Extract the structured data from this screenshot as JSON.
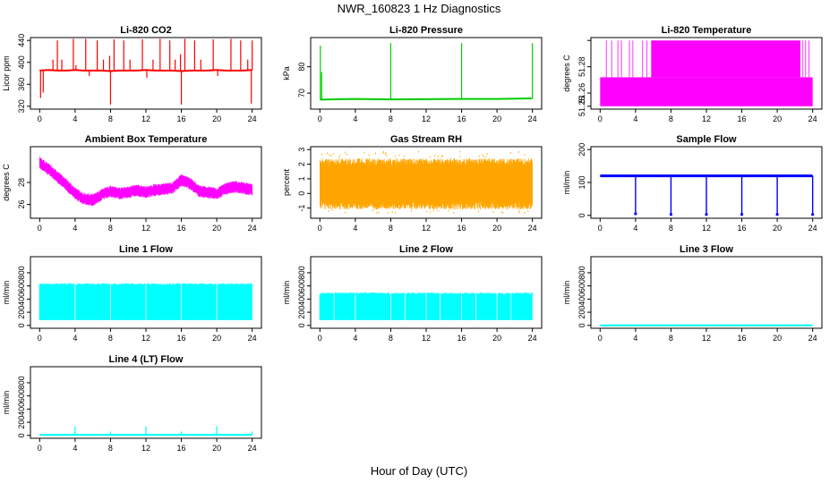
{
  "figure": {
    "title": "NWR_160823  1 Hz Diagnostics",
    "xlabel": "Hour of Day (UTC)"
  },
  "colors": {
    "red": "#ff0000",
    "green": "#00cd00",
    "magenta": "#ff00ff",
    "orange": "#ffa500",
    "blue": "#0000ff",
    "cyan": "#00ffff"
  },
  "chart_data": [
    {
      "type": "line",
      "title": "Li-820 CO2",
      "ylabel": "Licor ppm",
      "xlim": [
        0,
        24
      ],
      "ylim": [
        320,
        440
      ],
      "xticks": [
        0,
        4,
        8,
        12,
        16,
        20,
        24
      ],
      "yticks": [
        320,
        360,
        400,
        440
      ],
      "series": [
        {
          "color": "#ff0000",
          "x": [
            0,
            1,
            2,
            3,
            4,
            5,
            6,
            7,
            8,
            9,
            10,
            11,
            12,
            13,
            14,
            15,
            16,
            17,
            18,
            19,
            20,
            21,
            22,
            23,
            24
          ],
          "y": [
            385,
            386,
            385,
            385,
            386,
            385,
            385,
            385,
            384,
            385,
            385,
            385,
            386,
            385,
            385,
            385,
            384,
            385,
            385,
            385,
            386,
            385,
            385,
            385,
            386
          ],
          "spikes": [
            [
              0.1,
              335
            ],
            [
              0.4,
              345
            ],
            [
              1.5,
              405
            ],
            [
              2.0,
              440
            ],
            [
              2.5,
              405
            ],
            [
              3.8,
              443
            ],
            [
              4.1,
              395
            ],
            [
              5.2,
              443
            ],
            [
              5.6,
              375
            ],
            [
              6.5,
              440
            ],
            [
              7.2,
              405
            ],
            [
              7.9,
              412
            ],
            [
              8.0,
              323
            ],
            [
              8.4,
              442
            ],
            [
              9.5,
              440
            ],
            [
              10.2,
              405
            ],
            [
              11.6,
              442
            ],
            [
              12.1,
              372
            ],
            [
              12.8,
              405
            ],
            [
              13.6,
              443
            ],
            [
              14.7,
              440
            ],
            [
              15.3,
              405
            ],
            [
              15.9,
              415
            ],
            [
              16.0,
              323
            ],
            [
              16.4,
              443
            ],
            [
              17.5,
              440
            ],
            [
              18.2,
              405
            ],
            [
              19.6,
              442
            ],
            [
              20.1,
              375
            ],
            [
              21.6,
              443
            ],
            [
              22.7,
              440
            ],
            [
              23.5,
              405
            ],
            [
              23.9,
              325
            ],
            [
              24.0,
              440
            ]
          ]
        }
      ]
    },
    {
      "type": "line",
      "title": "Li-820 Pressure",
      "ylabel": "kPa",
      "xlim": [
        0,
        24
      ],
      "ylim": [
        65,
        90
      ],
      "xticks": [
        0,
        4,
        8,
        12,
        16,
        20,
        24
      ],
      "yticks": [
        70,
        80
      ],
      "series": [
        {
          "color": "#00cd00",
          "x": [
            0,
            4,
            8,
            12,
            16,
            20,
            24
          ],
          "y": [
            67.5,
            67.8,
            67.6,
            67.7,
            67.8,
            67.8,
            68.0
          ],
          "spikes": [
            [
              0.05,
              88
            ],
            [
              0.2,
              78
            ],
            [
              8.0,
              89
            ],
            [
              16.0,
              89
            ],
            [
              24.0,
              89
            ]
          ]
        }
      ]
    },
    {
      "type": "line",
      "title": "Li-820 Temperature",
      "ylabel": "degrees C",
      "xlim": [
        0,
        24
      ],
      "ylim": [
        51.25,
        51.3
      ],
      "xticks": [
        0,
        4,
        8,
        12,
        16,
        20,
        24
      ],
      "yticks": [
        51.25,
        51.26,
        51.28,
        51.3
      ],
      "yticklabels": [
        "51.25",
        "51.26",
        "51.28",
        ""
      ],
      "series": [
        {
          "color": "#ff00ff",
          "fill_band": [
            51.25,
            51.272
          ],
          "top_value": 51.3,
          "top_dense_ranges": [
            [
              5.8,
              22.6
            ]
          ],
          "top_sparse_x": [
            0.7,
            1.3,
            2.0,
            2.4,
            3.3,
            3.7,
            4.8,
            5.3,
            22.9,
            23.2,
            23.6
          ]
        }
      ]
    },
    {
      "type": "line",
      "title": "Ambient Box Temperature",
      "ylabel": "degrees C",
      "xlim": [
        0,
        24
      ],
      "ylim": [
        25,
        31
      ],
      "xticks": [
        0,
        4,
        8,
        12,
        16,
        20,
        24
      ],
      "yticks": [
        26,
        28
      ],
      "series": [
        {
          "color": "#ff00ff",
          "x": [
            0,
            1,
            2,
            3,
            4,
            5,
            6,
            7,
            8,
            9,
            10,
            11,
            12,
            13,
            14,
            15,
            16,
            17,
            18,
            19,
            20,
            21,
            22,
            23,
            24
          ],
          "y": [
            29.8,
            29.2,
            28.5,
            27.8,
            27.0,
            26.5,
            26.4,
            26.9,
            27.2,
            27.0,
            27.1,
            27.3,
            27.1,
            27.3,
            27.4,
            27.5,
            28.2,
            27.9,
            27.2,
            27.1,
            27.0,
            27.4,
            27.6,
            27.5,
            27.3
          ],
          "noise": 0.55
        }
      ]
    },
    {
      "type": "line",
      "title": "Gas Stream RH",
      "ylabel": "percent",
      "xlim": [
        0,
        24
      ],
      "ylim": [
        -1.5,
        3
      ],
      "xticks": [
        0,
        4,
        8,
        12,
        16,
        20,
        24
      ],
      "yticks": [
        -1,
        0,
        1,
        2,
        3
      ],
      "series": [
        {
          "color": "#ffa500",
          "band": [
            -1.1,
            2.4
          ],
          "outer": [
            -1.3,
            2.9
          ]
        }
      ]
    },
    {
      "type": "line",
      "title": "Sample Flow",
      "ylabel": "ml/min",
      "xlim": [
        0,
        24
      ],
      "ylim": [
        0,
        200
      ],
      "xticks": [
        0,
        4,
        8,
        12,
        16,
        20,
        24
      ],
      "yticks": [
        0,
        100,
        200
      ],
      "series": [
        {
          "color": "#0000ff",
          "base": 120,
          "dips": [
            [
              4.0,
              5
            ],
            [
              8.0,
              3
            ],
            [
              12.0,
              3
            ],
            [
              16.0,
              3
            ],
            [
              20.0,
              3
            ],
            [
              24.0,
              3
            ]
          ]
        }
      ]
    },
    {
      "type": "line",
      "title": "Line 1 Flow",
      "ylabel": "ml/min",
      "xlim": [
        0,
        24
      ],
      "ylim": [
        0,
        1000
      ],
      "xticks": [
        0,
        4,
        8,
        12,
        16,
        20,
        24
      ],
      "yticks": [
        0,
        200,
        400,
        600,
        800
      ],
      "series": [
        {
          "color": "#00ffff",
          "band": [
            80,
            640
          ],
          "gaps": [
            4,
            8,
            12,
            16,
            20
          ]
        }
      ]
    },
    {
      "type": "line",
      "title": "Line 2 Flow",
      "ylabel": "ml/min",
      "xlim": [
        0,
        24
      ],
      "ylim": [
        0,
        1000
      ],
      "xticks": [
        0,
        4,
        8,
        12,
        16,
        20,
        24
      ],
      "yticks": [
        0,
        200,
        400,
        600,
        800
      ],
      "series": [
        {
          "color": "#00ffff",
          "band": [
            80,
            500
          ],
          "gaps": [
            1.6,
            4,
            8,
            9.6,
            12,
            13.6,
            16,
            17.6,
            20,
            21.6
          ]
        }
      ]
    },
    {
      "type": "line",
      "title": "Line 3 Flow",
      "ylabel": "ml/min",
      "xlim": [
        0,
        24
      ],
      "ylim": [
        0,
        1000
      ],
      "xticks": [
        0,
        4,
        8,
        12,
        16,
        20,
        24
      ],
      "yticks": [
        0,
        200,
        400,
        600,
        800
      ],
      "series": [
        {
          "color": "#00ffff",
          "x": [
            0,
            24
          ],
          "y": [
            0,
            0
          ]
        }
      ]
    },
    {
      "type": "line",
      "title": "Line 4 (LT) Flow",
      "ylabel": "ml/min",
      "xlim": [
        0,
        24
      ],
      "ylim": [
        0,
        1000
      ],
      "xticks": [
        0,
        4,
        8,
        12,
        16,
        20,
        24
      ],
      "yticks": [
        0,
        200,
        400,
        600,
        800
      ],
      "series": [
        {
          "color": "#00ffff",
          "x": [
            0,
            24
          ],
          "y": [
            10,
            10
          ],
          "spikes": [
            [
              4.0,
              140
            ],
            [
              8.0,
              60
            ],
            [
              12.0,
              140
            ],
            [
              16.0,
              60
            ],
            [
              20.0,
              140
            ],
            [
              24.0,
              60
            ]
          ]
        }
      ]
    }
  ]
}
